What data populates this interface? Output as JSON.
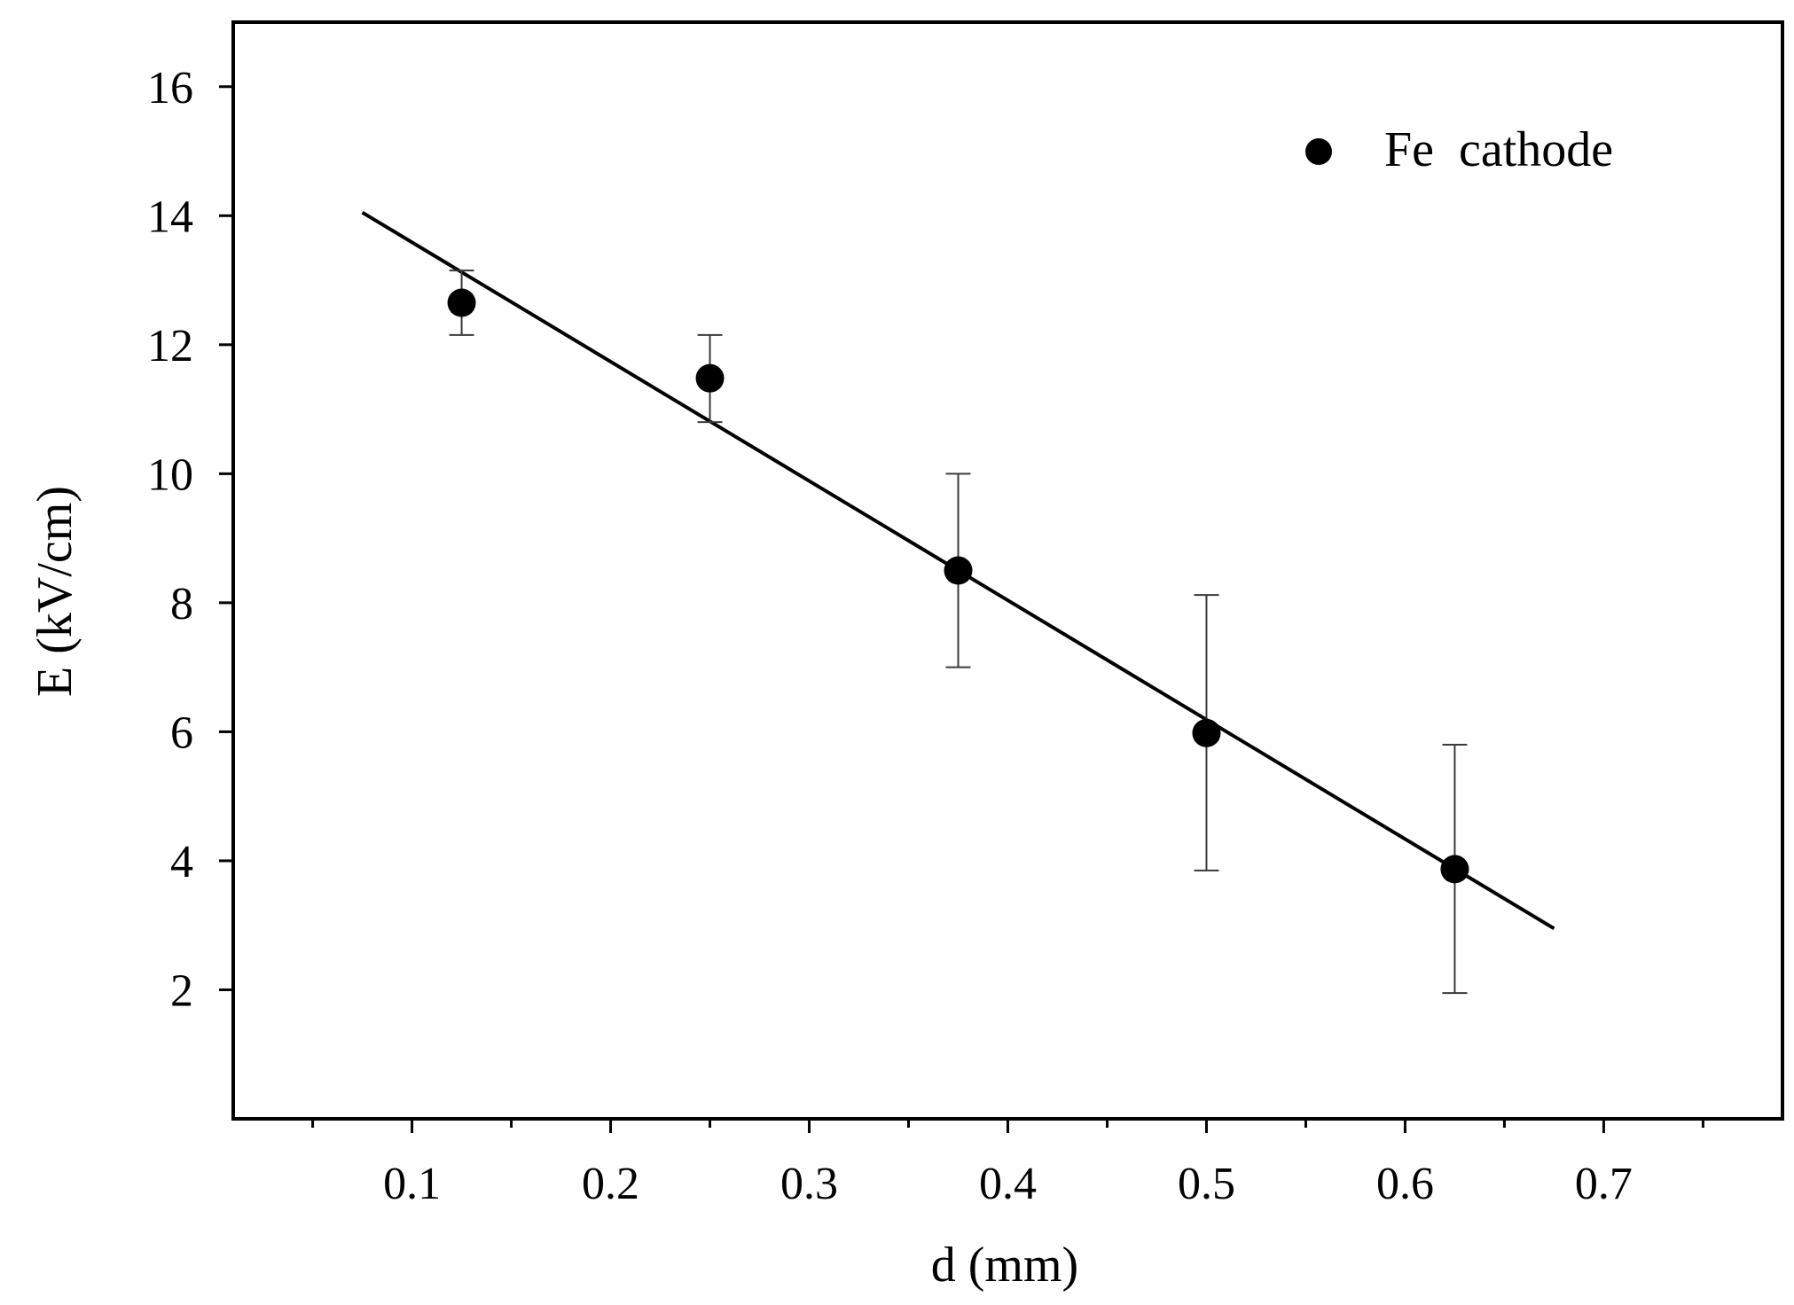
{
  "chart_data": {
    "type": "scatter",
    "title": "",
    "xlabel": "d (mm)",
    "ylabel": "E (kV/cm)",
    "xlim": [
      0.01,
      0.79
    ],
    "ylim": [
      0,
      17
    ],
    "x_ticks": [
      0.1,
      0.2,
      0.3,
      0.4,
      0.5,
      0.6,
      0.7
    ],
    "x_tick_labels": [
      "0.1",
      "0.2",
      "0.3",
      "0.4",
      "0.5",
      "0.6",
      "0.7"
    ],
    "x_minor_ticks": [
      0.05,
      0.15,
      0.25,
      0.35,
      0.45,
      0.55,
      0.65,
      0.75
    ],
    "y_ticks": [
      2,
      4,
      6,
      8,
      10,
      12,
      14,
      16
    ],
    "y_tick_labels": [
      "2",
      "4",
      "6",
      "8",
      "10",
      "12",
      "14",
      "16"
    ],
    "grid": false,
    "series": [
      {
        "name": "Fe  cathode",
        "marker": "circle",
        "color": "#000000",
        "points": [
          {
            "x": 0.125,
            "y": 12.65,
            "err_low": 12.15,
            "err_high": 13.15
          },
          {
            "x": 0.25,
            "y": 11.48,
            "err_low": 10.8,
            "err_high": 12.15
          },
          {
            "x": 0.375,
            "y": 8.5,
            "err_low": 7.0,
            "err_high": 10.0
          },
          {
            "x": 0.5,
            "y": 5.98,
            "err_low": 3.85,
            "err_high": 8.12
          },
          {
            "x": 0.625,
            "y": 3.87,
            "err_low": 1.95,
            "err_high": 5.8
          }
        ]
      }
    ],
    "fit_line": {
      "x": [
        0.075,
        0.675
      ],
      "y": [
        14.05,
        2.95
      ],
      "color": "#000000"
    },
    "legend": {
      "position": "top-right",
      "label": "Fe  cathode"
    }
  }
}
